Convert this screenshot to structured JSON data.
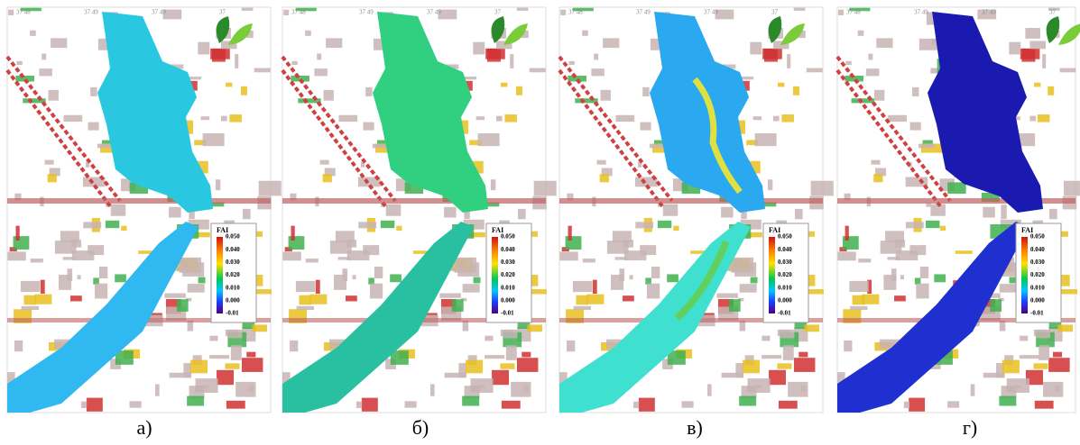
{
  "panels": [
    {
      "label": "а)"
    },
    {
      "label": "б)"
    },
    {
      "label": "в)"
    },
    {
      "label": "г)"
    }
  ],
  "coordinates": [
    "37 48",
    "37 49",
    "37 49",
    "37"
  ],
  "legend": {
    "title": "FAI",
    "ticks": [
      "0.050",
      "0.040",
      "0.030",
      "0.020",
      "0.010",
      "0.000",
      "-0.01"
    ]
  }
}
